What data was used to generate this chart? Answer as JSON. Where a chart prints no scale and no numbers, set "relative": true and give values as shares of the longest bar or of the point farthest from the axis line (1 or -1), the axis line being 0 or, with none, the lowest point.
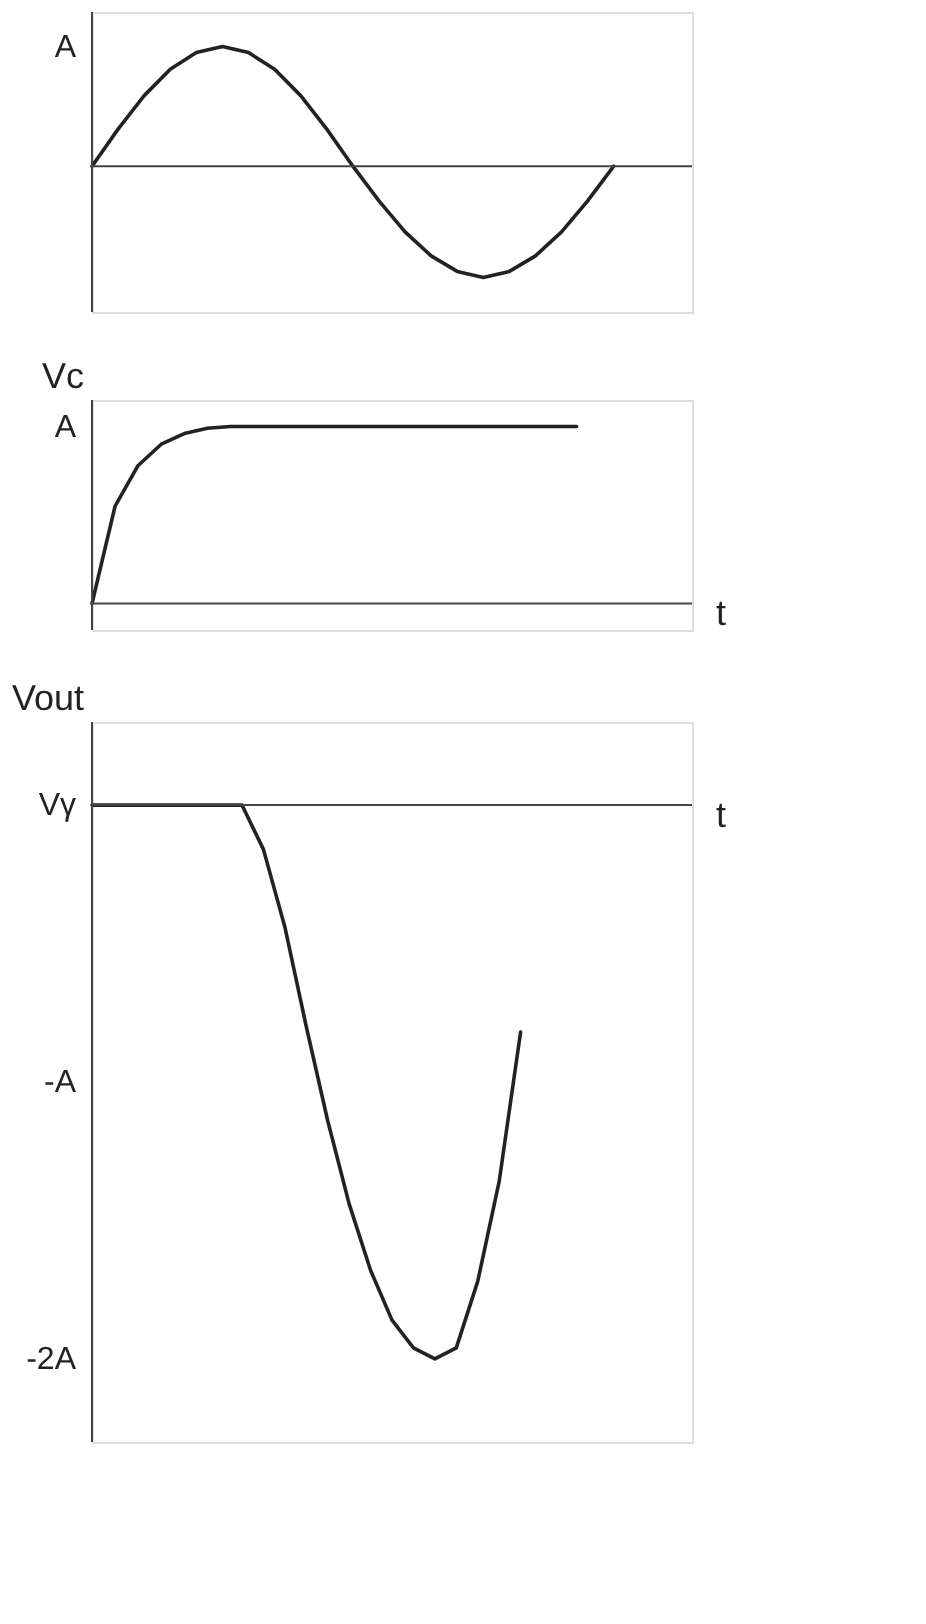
{
  "chart_data": [
    {
      "type": "line",
      "relative": true,
      "tick_labels": false,
      "categories": [
        null,
        null,
        null,
        null,
        null,
        null,
        null,
        null,
        null,
        null,
        null,
        null,
        null,
        null,
        null,
        null,
        null,
        null,
        null,
        null,
        null,
        null,
        null,
        null
      ],
      "series": [
        {
          "color": "#222222",
          "values": [
            0,
            0.31,
            0.59,
            0.81,
            0.95,
            1,
            0.95,
            0.81,
            0.59,
            0.31,
            0,
            -0.29,
            -0.55,
            -0.75,
            -0.88,
            -0.93,
            -0.88,
            -0.75,
            -0.55,
            -0.29,
            0,
            null,
            null,
            null
          ]
        }
      ],
      "annotations": [
        "A"
      ]
    },
    {
      "type": "line",
      "relative": true,
      "tick_labels": false,
      "xlabel": "t",
      "ylabel": "Vc",
      "categories": [
        null,
        null,
        null,
        null,
        null,
        null,
        null,
        null,
        null,
        null,
        null,
        null,
        null,
        null,
        null,
        null,
        null,
        null,
        null,
        null,
        null,
        null,
        null,
        null,
        null,
        null,
        null
      ],
      "series": [
        {
          "color": "#222222",
          "values": [
            0,
            0.55,
            0.78,
            0.9,
            0.96,
            0.99,
            1,
            1,
            1,
            1,
            1,
            1,
            1,
            1,
            1,
            1,
            1,
            1,
            1,
            1,
            1,
            1,
            null,
            null,
            null,
            null,
            null
          ]
        }
      ],
      "annotations": [
        "A"
      ]
    },
    {
      "type": "line",
      "relative": true,
      "tick_labels": false,
      "xlabel": "t",
      "ylabel": "Vout",
      "categories": [
        null,
        null,
        null,
        null,
        null,
        null,
        null,
        null,
        null,
        null,
        null,
        null,
        null,
        null,
        null,
        null,
        null,
        null,
        null,
        null,
        null,
        null,
        null,
        null,
        null,
        null,
        null,
        null,
        null
      ],
      "series": [
        {
          "color": "#222222",
          "values": [
            0,
            0,
            0,
            0,
            0,
            0,
            0,
            0,
            -0.08,
            -0.22,
            -0.4,
            -0.57,
            -0.72,
            -0.84,
            -0.93,
            -0.98,
            -1,
            -0.98,
            -0.86,
            -0.68,
            -0.41,
            null,
            null,
            null,
            null,
            null,
            null,
            null,
            null
          ]
        }
      ],
      "annotations": [
        "Vγ",
        "-A",
        "-2A"
      ]
    }
  ]
}
